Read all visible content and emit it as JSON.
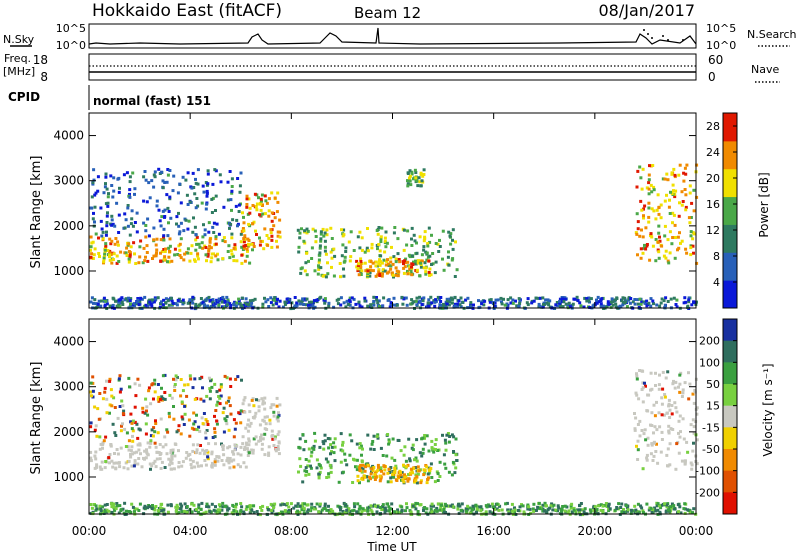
{
  "header": {
    "title": "Hokkaido East (fitACF)",
    "beam": "Beam 12",
    "date": "08/Jan/2017"
  },
  "top_panels": {
    "nsky_label": "N.Sky",
    "nsearch_label": "N.Search",
    "noise_ticks": [
      "10^5",
      "10^0"
    ],
    "freq_label_1": "Freq.",
    "freq_label_2": "[MHz]",
    "freq_ticks": [
      "18",
      "8"
    ],
    "nave_label": "Nave",
    "nave_ticks": [
      "60",
      "0"
    ],
    "cpid_label": "CPID",
    "cpid_text": "normal (fast) 151"
  },
  "x_axis": {
    "label": "Time UT",
    "ticks": [
      "00:00",
      "04:00",
      "08:00",
      "12:00",
      "16:00",
      "20:00",
      "00:00"
    ]
  },
  "chart_data": [
    {
      "type": "heatmap",
      "name": "power",
      "ylabel": "Slant Range [km]",
      "yticks": [
        "1000",
        "2000",
        "3000",
        "4000"
      ],
      "ylim": [
        180,
        4500
      ],
      "xlim": [
        "00:00",
        "24:00"
      ],
      "colorbar": {
        "label": "Power [dB]",
        "ticks": [
          "4",
          "8",
          "12",
          "16",
          "20",
          "24",
          "28"
        ],
        "range": [
          0,
          30
        ],
        "colors": [
          "#0a18d8",
          "#2860b8",
          "#2e7a60",
          "#4aa848",
          "#f0e000",
          "#f08a00",
          "#e01800"
        ]
      },
      "regions": [
        {
          "t0": 0.0,
          "t1": 6.3,
          "r0": 1200,
          "r1": 1800,
          "level": "high"
        },
        {
          "t0": 0.0,
          "t1": 6.0,
          "r0": 1800,
          "r1": 3300,
          "level": "low"
        },
        {
          "t0": 6.0,
          "t1": 7.5,
          "r0": 1500,
          "r1": 2800,
          "level": "high"
        },
        {
          "t0": 8.2,
          "t1": 14.5,
          "r0": 900,
          "r1": 2000,
          "level": "mid"
        },
        {
          "t0": 10.5,
          "t1": 13.5,
          "r0": 900,
          "r1": 1300,
          "level": "high"
        },
        {
          "t0": 12.5,
          "t1": 13.2,
          "r0": 2900,
          "r1": 3300,
          "level": "mid"
        },
        {
          "t0": 0.0,
          "t1": 24.0,
          "r0": 200,
          "r1": 450,
          "level": "low"
        },
        {
          "t0": 21.5,
          "t1": 24.0,
          "r0": 1200,
          "r1": 3400,
          "level": "high"
        }
      ]
    },
    {
      "type": "heatmap",
      "name": "velocity",
      "ylabel": "Slant Range [km]",
      "yticks": [
        "1000",
        "2000",
        "3000",
        "4000"
      ],
      "ylim": [
        180,
        4500
      ],
      "xlim": [
        "00:00",
        "24:00"
      ],
      "colorbar": {
        "label": "Velocity [m s⁻¹]",
        "ticks": [
          "200",
          "100",
          "50",
          "15",
          "-15",
          "-50",
          "-100",
          "-200"
        ],
        "range": [
          -250,
          250
        ],
        "colors": [
          "#1830a0",
          "#2f6e5e",
          "#3aa040",
          "#78d040",
          "#c8c8c0",
          "#f0d000",
          "#f08a00",
          "#e05000",
          "#e01000"
        ]
      },
      "regions": [
        {
          "t0": 0.0,
          "t1": 6.3,
          "r0": 1200,
          "r1": 1800,
          "level": "ground"
        },
        {
          "t0": 0.0,
          "t1": 6.0,
          "r0": 1800,
          "r1": 3300,
          "level": "mixed"
        },
        {
          "t0": 6.0,
          "t1": 7.5,
          "r0": 1500,
          "r1": 2800,
          "level": "ground"
        },
        {
          "t0": 8.2,
          "t1": 14.5,
          "r0": 900,
          "r1": 2000,
          "level": "pos"
        },
        {
          "t0": 10.5,
          "t1": 13.5,
          "r0": 900,
          "r1": 1300,
          "level": "neg"
        },
        {
          "t0": 0.0,
          "t1": 24.0,
          "r0": 200,
          "r1": 450,
          "level": "pos"
        },
        {
          "t0": 21.5,
          "t1": 24.0,
          "r0": 1200,
          "r1": 3400,
          "level": "ground"
        }
      ]
    }
  ]
}
